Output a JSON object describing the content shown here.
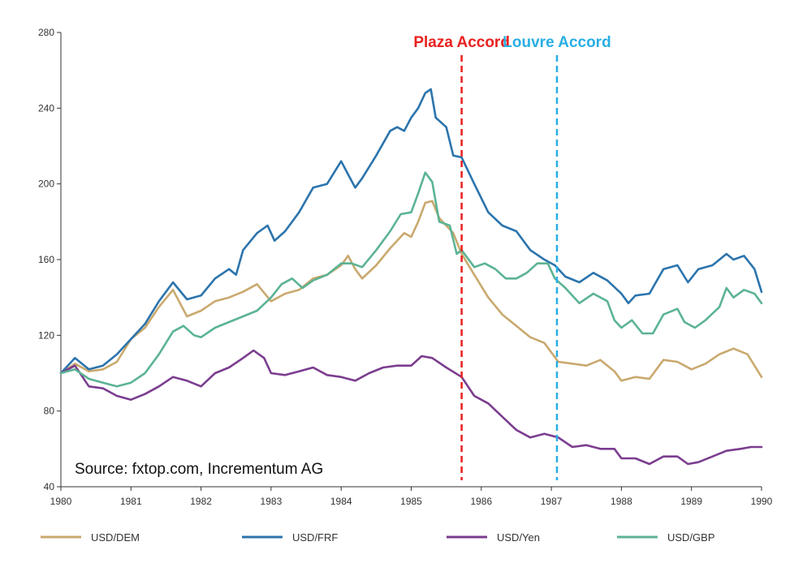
{
  "chart_data": {
    "type": "line",
    "title": "",
    "xlabel": "",
    "ylabel": "",
    "xlim": [
      1980,
      1990
    ],
    "ylim": [
      40,
      280
    ],
    "y_ticks": [
      40,
      80,
      120,
      160,
      200,
      240,
      280
    ],
    "x_ticks": [
      1980,
      1981,
      1982,
      1983,
      1984,
      1985,
      1986,
      1987,
      1988,
      1989,
      1990
    ],
    "grid": false,
    "legend_position": "bottom",
    "source": "Source: fxtop.com, Incrementum AG",
    "annotations": [
      {
        "label": "Plaza Accord",
        "x": 1985.72,
        "color": "#e8211f"
      },
      {
        "label": "Louvre Accord",
        "x": 1987.08,
        "color": "#29aee3"
      }
    ],
    "series": [
      {
        "name": "USD/DEM",
        "color": "#c9a96e",
        "points": [
          [
            1980,
            100
          ],
          [
            1980.2,
            105
          ],
          [
            1980.4,
            101
          ],
          [
            1980.6,
            102
          ],
          [
            1980.8,
            106
          ],
          [
            1981,
            118
          ],
          [
            1981.2,
            124
          ],
          [
            1981.4,
            135
          ],
          [
            1981.6,
            144
          ],
          [
            1981.8,
            130
          ],
          [
            1982,
            133
          ],
          [
            1982.2,
            138
          ],
          [
            1982.4,
            140
          ],
          [
            1982.6,
            143
          ],
          [
            1982.8,
            147
          ],
          [
            1983,
            138
          ],
          [
            1983.2,
            142
          ],
          [
            1983.4,
            144
          ],
          [
            1983.6,
            150
          ],
          [
            1983.8,
            152
          ],
          [
            1984,
            157
          ],
          [
            1984.1,
            162
          ],
          [
            1984.2,
            155
          ],
          [
            1984.3,
            150
          ],
          [
            1984.5,
            157
          ],
          [
            1984.7,
            166
          ],
          [
            1984.9,
            174
          ],
          [
            1985,
            172
          ],
          [
            1985.1,
            180
          ],
          [
            1985.2,
            190
          ],
          [
            1985.3,
            191
          ],
          [
            1985.4,
            182
          ],
          [
            1985.6,
            174
          ],
          [
            1985.72,
            163
          ],
          [
            1985.9,
            152
          ],
          [
            1986.1,
            140
          ],
          [
            1986.3,
            131
          ],
          [
            1986.5,
            125
          ],
          [
            1986.7,
            119
          ],
          [
            1986.9,
            116
          ],
          [
            1987.1,
            106
          ],
          [
            1987.3,
            105
          ],
          [
            1987.5,
            104
          ],
          [
            1987.7,
            107
          ],
          [
            1987.9,
            101
          ],
          [
            1988,
            96
          ],
          [
            1988.2,
            98
          ],
          [
            1988.4,
            97
          ],
          [
            1988.6,
            107
          ],
          [
            1988.8,
            106
          ],
          [
            1989,
            102
          ],
          [
            1989.2,
            105
          ],
          [
            1989.4,
            110
          ],
          [
            1989.6,
            113
          ],
          [
            1989.8,
            110
          ],
          [
            1990,
            98
          ]
        ]
      },
      {
        "name": "USD/FRF",
        "color": "#2b74ad",
        "points": [
          [
            1980,
            100
          ],
          [
            1980.2,
            108
          ],
          [
            1980.4,
            102
          ],
          [
            1980.6,
            104
          ],
          [
            1980.8,
            110
          ],
          [
            1981,
            118
          ],
          [
            1981.2,
            126
          ],
          [
            1981.4,
            138
          ],
          [
            1981.6,
            148
          ],
          [
            1981.8,
            139
          ],
          [
            1982,
            141
          ],
          [
            1982.2,
            150
          ],
          [
            1982.4,
            155
          ],
          [
            1982.5,
            152
          ],
          [
            1982.6,
            165
          ],
          [
            1982.8,
            174
          ],
          [
            1982.95,
            178
          ],
          [
            1983.05,
            170
          ],
          [
            1983.2,
            175
          ],
          [
            1983.4,
            185
          ],
          [
            1983.6,
            198
          ],
          [
            1983.8,
            200
          ],
          [
            1984,
            212
          ],
          [
            1984.1,
            205
          ],
          [
            1984.2,
            198
          ],
          [
            1984.3,
            203
          ],
          [
            1984.5,
            215
          ],
          [
            1984.7,
            228
          ],
          [
            1984.8,
            230
          ],
          [
            1984.9,
            228
          ],
          [
            1985,
            235
          ],
          [
            1985.1,
            240
          ],
          [
            1985.2,
            248
          ],
          [
            1985.28,
            250
          ],
          [
            1985.35,
            235
          ],
          [
            1985.5,
            230
          ],
          [
            1985.6,
            215
          ],
          [
            1985.72,
            214
          ],
          [
            1985.9,
            200
          ],
          [
            1986.1,
            185
          ],
          [
            1986.3,
            178
          ],
          [
            1986.5,
            175
          ],
          [
            1986.7,
            165
          ],
          [
            1986.9,
            160
          ],
          [
            1987.05,
            157
          ],
          [
            1987.2,
            151
          ],
          [
            1987.4,
            148
          ],
          [
            1987.6,
            153
          ],
          [
            1987.8,
            149
          ],
          [
            1988,
            142
          ],
          [
            1988.1,
            137
          ],
          [
            1988.2,
            141
          ],
          [
            1988.4,
            142
          ],
          [
            1988.6,
            155
          ],
          [
            1988.8,
            157
          ],
          [
            1988.95,
            148
          ],
          [
            1989.1,
            155
          ],
          [
            1989.3,
            157
          ],
          [
            1989.5,
            163
          ],
          [
            1989.6,
            160
          ],
          [
            1989.75,
            162
          ],
          [
            1989.9,
            155
          ],
          [
            1990,
            143
          ]
        ]
      },
      {
        "name": "USD/Yen",
        "color": "#7b3d8f",
        "points": [
          [
            1980,
            100
          ],
          [
            1980.2,
            104
          ],
          [
            1980.4,
            93
          ],
          [
            1980.6,
            92
          ],
          [
            1980.8,
            88
          ],
          [
            1981,
            86
          ],
          [
            1981.2,
            89
          ],
          [
            1981.4,
            93
          ],
          [
            1981.6,
            98
          ],
          [
            1981.8,
            96
          ],
          [
            1982,
            93
          ],
          [
            1982.2,
            100
          ],
          [
            1982.4,
            103
          ],
          [
            1982.6,
            108
          ],
          [
            1982.75,
            112
          ],
          [
            1982.9,
            108
          ],
          [
            1983,
            100
          ],
          [
            1983.2,
            99
          ],
          [
            1983.4,
            101
          ],
          [
            1983.6,
            103
          ],
          [
            1983.8,
            99
          ],
          [
            1984,
            98
          ],
          [
            1984.2,
            96
          ],
          [
            1984.4,
            100
          ],
          [
            1984.6,
            103
          ],
          [
            1984.8,
            104
          ],
          [
            1985,
            104
          ],
          [
            1985.15,
            109
          ],
          [
            1985.3,
            108
          ],
          [
            1985.5,
            103
          ],
          [
            1985.72,
            98
          ],
          [
            1985.9,
            88
          ],
          [
            1986.1,
            84
          ],
          [
            1986.3,
            77
          ],
          [
            1986.5,
            70
          ],
          [
            1986.7,
            66
          ],
          [
            1986.9,
            68
          ],
          [
            1987.1,
            66
          ],
          [
            1987.3,
            61
          ],
          [
            1987.5,
            62
          ],
          [
            1987.7,
            60
          ],
          [
            1987.9,
            60
          ],
          [
            1988,
            55
          ],
          [
            1988.2,
            55
          ],
          [
            1988.4,
            52
          ],
          [
            1988.6,
            56
          ],
          [
            1988.8,
            56
          ],
          [
            1988.95,
            52
          ],
          [
            1989.1,
            53
          ],
          [
            1989.3,
            56
          ],
          [
            1989.5,
            59
          ],
          [
            1989.7,
            60
          ],
          [
            1989.85,
            61
          ],
          [
            1990,
            61
          ]
        ]
      },
      {
        "name": "USD/GBP",
        "color": "#5bb394",
        "points": [
          [
            1980,
            100
          ],
          [
            1980.2,
            102
          ],
          [
            1980.4,
            97
          ],
          [
            1980.6,
            95
          ],
          [
            1980.8,
            93
          ],
          [
            1981,
            95
          ],
          [
            1981.2,
            100
          ],
          [
            1981.4,
            110
          ],
          [
            1981.6,
            122
          ],
          [
            1981.75,
            125
          ],
          [
            1981.9,
            120
          ],
          [
            1982,
            119
          ],
          [
            1982.2,
            124
          ],
          [
            1982.4,
            127
          ],
          [
            1982.6,
            130
          ],
          [
            1982.8,
            133
          ],
          [
            1983,
            140
          ],
          [
            1983.15,
            147
          ],
          [
            1983.3,
            150
          ],
          [
            1983.45,
            145
          ],
          [
            1983.6,
            149
          ],
          [
            1983.8,
            152
          ],
          [
            1984,
            158
          ],
          [
            1984.15,
            158
          ],
          [
            1984.3,
            156
          ],
          [
            1984.5,
            165
          ],
          [
            1984.7,
            175
          ],
          [
            1984.85,
            184
          ],
          [
            1985,
            185
          ],
          [
            1985.1,
            195
          ],
          [
            1985.2,
            206
          ],
          [
            1985.3,
            201
          ],
          [
            1985.4,
            180
          ],
          [
            1985.55,
            178
          ],
          [
            1985.65,
            163
          ],
          [
            1985.72,
            165
          ],
          [
            1985.9,
            156
          ],
          [
            1986.05,
            158
          ],
          [
            1986.2,
            155
          ],
          [
            1986.35,
            150
          ],
          [
            1986.5,
            150
          ],
          [
            1986.65,
            153
          ],
          [
            1986.8,
            158
          ],
          [
            1986.95,
            158
          ],
          [
            1987.05,
            150
          ],
          [
            1987.2,
            145
          ],
          [
            1987.4,
            137
          ],
          [
            1987.6,
            142
          ],
          [
            1987.8,
            138
          ],
          [
            1987.9,
            128
          ],
          [
            1988,
            124
          ],
          [
            1988.15,
            128
          ],
          [
            1988.3,
            121
          ],
          [
            1988.45,
            121
          ],
          [
            1988.6,
            131
          ],
          [
            1988.8,
            134
          ],
          [
            1988.9,
            127
          ],
          [
            1989.05,
            124
          ],
          [
            1989.2,
            128
          ],
          [
            1989.4,
            135
          ],
          [
            1989.5,
            145
          ],
          [
            1989.6,
            140
          ],
          [
            1989.75,
            144
          ],
          [
            1989.9,
            142
          ],
          [
            1990,
            137
          ]
        ]
      }
    ]
  }
}
